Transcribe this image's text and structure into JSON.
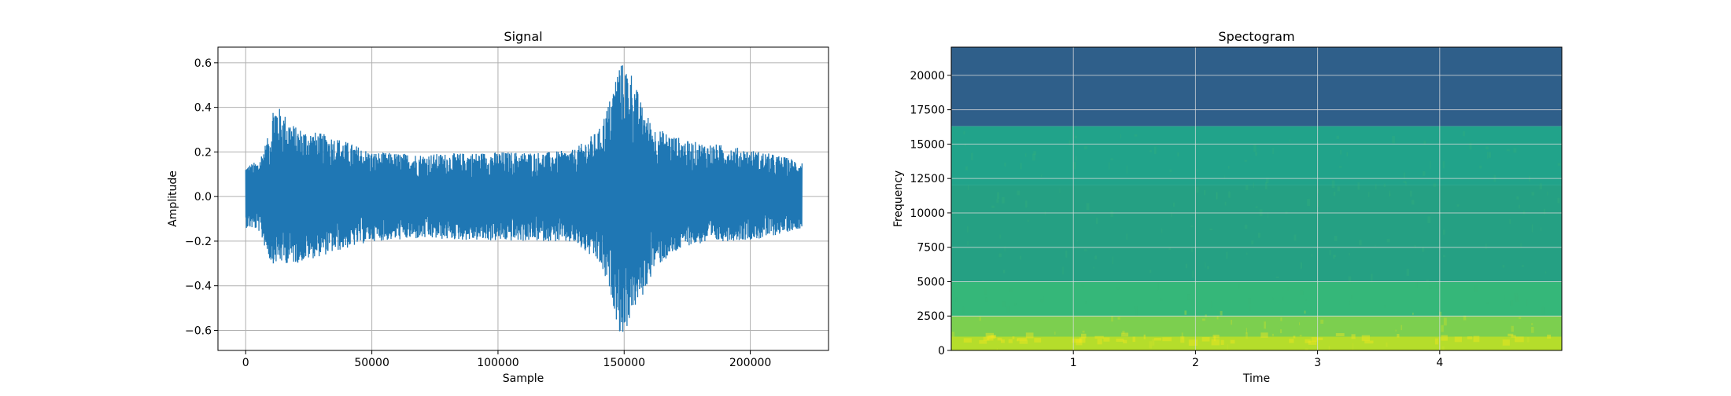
{
  "chart_data": [
    {
      "type": "line",
      "title": "Signal",
      "xlabel": "Sample",
      "ylabel": "Amplitude",
      "xlim": [
        -11000,
        231000
      ],
      "ylim": [
        -0.69,
        0.67
      ],
      "grid": true,
      "x_ticks": [
        0,
        50000,
        100000,
        150000,
        200000
      ],
      "x_tick_labels": [
        "0",
        "50000",
        "100000",
        "150000",
        "200000"
      ],
      "y_ticks": [
        -0.6,
        -0.4,
        -0.2,
        0.0,
        0.2,
        0.4,
        0.6
      ],
      "y_tick_labels": [
        "−0.6",
        "−0.4",
        "−0.2",
        "0.0",
        "0.2",
        "0.4",
        "0.6"
      ],
      "series": [
        {
          "color": "#1f77b4",
          "envelope": {
            "x": [
              0,
              5000,
              10000,
              11000,
              20000,
              35000,
              50000,
              70000,
              100000,
              120000,
              130000,
              140000,
              145000,
              148000,
              150000,
              153000,
              157000,
              162000,
              175000,
              190000,
              205000,
              220500
            ],
            "max": [
              0.14,
              0.16,
              0.3,
              0.43,
              0.31,
              0.27,
              0.2,
              0.19,
              0.2,
              0.2,
              0.21,
              0.3,
              0.46,
              0.61,
              0.59,
              0.56,
              0.41,
              0.31,
              0.25,
              0.23,
              0.2,
              0.16
            ],
            "min": [
              -0.14,
              -0.15,
              -0.3,
              -0.3,
              -0.3,
              -0.25,
              -0.2,
              -0.19,
              -0.2,
              -0.2,
              -0.21,
              -0.3,
              -0.45,
              -0.61,
              -0.63,
              -0.52,
              -0.46,
              -0.32,
              -0.22,
              -0.2,
              -0.19,
              -0.14
            ]
          }
        }
      ]
    },
    {
      "type": "heatmap",
      "title": "Spectogram",
      "xlabel": "Time",
      "ylabel": "Frequency",
      "xlim": [
        0,
        5.0
      ],
      "ylim": [
        0,
        22050
      ],
      "grid": true,
      "x_ticks": [
        1,
        2,
        3,
        4
      ],
      "x_tick_labels": [
        "1",
        "2",
        "3",
        "4"
      ],
      "y_ticks": [
        0,
        2500,
        5000,
        7500,
        10000,
        12500,
        15000,
        17500,
        20000
      ],
      "y_tick_labels": [
        "0",
        "2500",
        "5000",
        "7500",
        "10000",
        "12500",
        "15000",
        "17500",
        "20000"
      ],
      "bands": [
        {
          "from": 16300,
          "to": 22050,
          "color": "#2f5f8a"
        },
        {
          "from": 12000,
          "to": 16300,
          "color": "#21a38a"
        },
        {
          "from": 5000,
          "to": 12000,
          "color": "#25a083"
        },
        {
          "from": 2500,
          "to": 5000,
          "color": "#35b779"
        },
        {
          "from": 1000,
          "to": 2500,
          "color": "#7ccf4f"
        },
        {
          "from": 0,
          "to": 1000,
          "color": "#b5dd2b"
        }
      ]
    }
  ]
}
